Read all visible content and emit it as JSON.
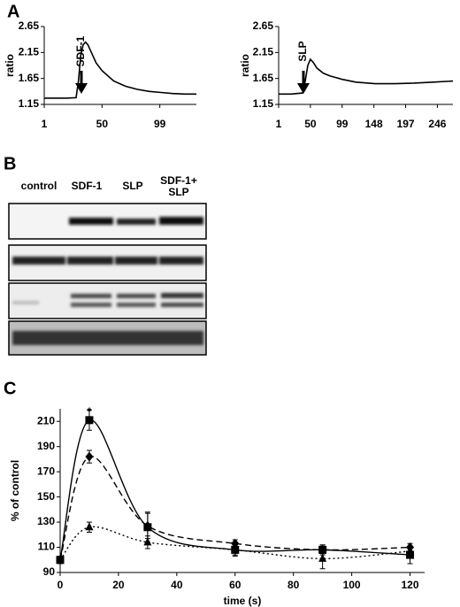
{
  "panel_labels": [
    "A",
    "B",
    "C"
  ],
  "blot": {
    "lanes": [
      "control",
      "SDF-1",
      "SLP",
      "SDF-1+ SLP"
    ]
  },
  "chart_data": [
    {
      "type": "line",
      "ylabel": "ratio",
      "annotation": "SDF-1",
      "color": "#000000",
      "x": [
        1,
        10,
        20,
        28,
        30,
        32,
        34,
        36,
        38,
        40,
        45,
        50,
        60,
        70,
        80,
        90,
        100,
        110,
        120,
        130
      ],
      "values": [
        1.27,
        1.27,
        1.27,
        1.28,
        1.6,
        2.1,
        2.3,
        2.35,
        2.3,
        2.2,
        1.95,
        1.8,
        1.6,
        1.5,
        1.44,
        1.4,
        1.38,
        1.36,
        1.35,
        1.35
      ],
      "xlim": [
        1,
        130
      ],
      "ylim": [
        1.15,
        2.65
      ],
      "xticks": [
        1,
        50,
        99
      ],
      "yticks": [
        1.15,
        1.65,
        2.15,
        2.65
      ]
    },
    {
      "type": "line",
      "ylabel": "ratio",
      "annotation": "SLP",
      "color": "#000000",
      "x": [
        1,
        20,
        38,
        42,
        46,
        50,
        55,
        60,
        70,
        80,
        100,
        120,
        150,
        180,
        210,
        240,
        270
      ],
      "values": [
        1.35,
        1.35,
        1.37,
        1.6,
        1.9,
        2.02,
        1.95,
        1.85,
        1.75,
        1.7,
        1.63,
        1.58,
        1.55,
        1.55,
        1.56,
        1.58,
        1.6
      ],
      "xlim": [
        1,
        270
      ],
      "ylim": [
        1.15,
        2.65
      ],
      "xticks": [
        1,
        50,
        99,
        148,
        197,
        246
      ],
      "yticks": [
        1.15,
        1.65,
        2.15,
        2.65
      ]
    },
    {
      "type": "errorline",
      "xlabel": "time (s)",
      "ylabel": "% of control",
      "annotation": "*",
      "x": [
        0,
        10,
        30,
        60,
        90,
        120
      ],
      "series": [
        {
          "marker": "square",
          "dash": "solid",
          "color": "#000000",
          "values": [
            100,
            211,
            126,
            108,
            108,
            104
          ],
          "errors": [
            3,
            8,
            12,
            5,
            4,
            7
          ]
        },
        {
          "marker": "diamond",
          "dash": "dashed",
          "color": "#000000",
          "values": [
            100,
            182,
            127,
            113,
            108,
            110
          ],
          "errors": [
            3,
            5,
            10,
            3,
            3,
            3
          ]
        },
        {
          "marker": "triangle",
          "dash": "dotted",
          "color": "#000000",
          "values": [
            100,
            126,
            114,
            108,
            101,
            107
          ],
          "errors": [
            3,
            4,
            5,
            4,
            8,
            4
          ]
        }
      ],
      "xlim": [
        0,
        125
      ],
      "ylim": [
        90,
        220
      ],
      "xticks": [
        0,
        20,
        40,
        60,
        80,
        100,
        120
      ],
      "yticks": [
        90,
        110,
        130,
        150,
        170,
        190,
        210
      ]
    }
  ]
}
